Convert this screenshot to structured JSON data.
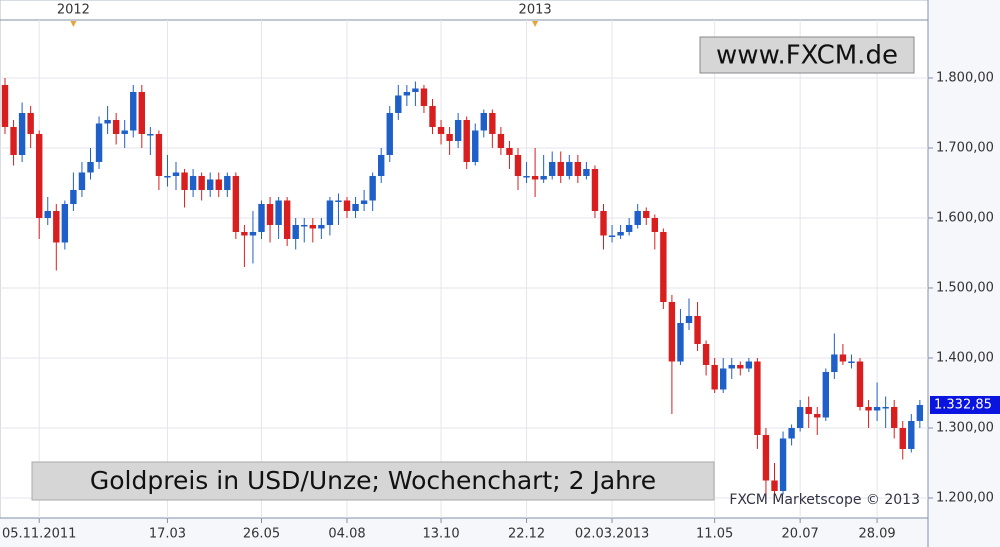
{
  "chart_data": {
    "type": "candlestick",
    "title": "Goldpreis in USD/Unze; Wochenchart; 2 Jahre",
    "watermark": "www.FXCM.de",
    "credit": "FXCM Marketscope © 2013",
    "up_color": "#1f5fc8",
    "down_color": "#d81e1e",
    "grid": true,
    "ylim": [
      1171.4,
      1911.4
    ],
    "yticks": [
      {
        "value": 1200,
        "label": "1.200,00"
      },
      {
        "value": 1300,
        "label": "1.300,00"
      },
      {
        "value": 1400,
        "label": "1.400,00"
      },
      {
        "value": 1500,
        "label": "1.500,00"
      },
      {
        "value": 1600,
        "label": "1.600,00"
      },
      {
        "value": 1700,
        "label": "1.700,00"
      },
      {
        "value": 1800,
        "label": "1.800,00"
      }
    ],
    "last_price": {
      "value": 1332.85,
      "label": "1.332,85"
    },
    "categories": [
      null,
      null,
      null,
      null,
      "05.11.2011",
      null,
      null,
      null,
      null,
      null,
      null,
      null,
      null,
      null,
      null,
      null,
      null,
      null,
      null,
      "17.03",
      null,
      null,
      null,
      null,
      null,
      null,
      null,
      null,
      null,
      null,
      "26.05",
      null,
      null,
      null,
      null,
      null,
      null,
      null,
      null,
      null,
      "04.08",
      null,
      null,
      null,
      null,
      null,
      null,
      null,
      null,
      null,
      null,
      "13.10",
      null,
      null,
      null,
      null,
      null,
      null,
      null,
      null,
      null,
      "22.12",
      null,
      null,
      null,
      null,
      null,
      null,
      null,
      null,
      null,
      "02.03.2013",
      null,
      null,
      null,
      null,
      null,
      null,
      null,
      null,
      null,
      null,
      null,
      "11.05",
      null,
      null,
      null,
      null,
      null,
      null,
      null,
      null,
      null,
      "20.07",
      null,
      null,
      null,
      null,
      null,
      null,
      null,
      null,
      "28.09",
      null,
      null,
      null,
      null,
      null
    ],
    "top_categories": [
      null,
      null,
      null,
      null,
      null,
      null,
      null,
      null,
      "2012",
      null,
      null,
      null,
      null,
      null,
      null,
      null,
      null,
      null,
      null,
      null,
      null,
      null,
      null,
      null,
      null,
      null,
      null,
      null,
      null,
      null,
      null,
      null,
      null,
      null,
      null,
      null,
      null,
      null,
      null,
      null,
      null,
      null,
      null,
      null,
      null,
      null,
      null,
      null,
      null,
      null,
      null,
      null,
      null,
      null,
      null,
      null,
      null,
      null,
      null,
      null,
      null,
      null,
      "2013",
      null,
      null,
      null,
      null,
      null,
      null,
      null,
      null,
      null,
      null,
      null,
      null,
      null,
      null,
      null,
      null,
      null,
      null,
      null,
      null,
      null,
      null,
      null,
      null,
      null,
      null,
      null,
      null,
      null,
      null,
      null,
      null,
      null,
      null,
      null,
      null,
      null,
      null,
      null,
      null,
      null,
      null,
      null,
      null,
      null
    ],
    "open": [
      1790,
      1730,
      1690,
      1750,
      1720,
      1600,
      1610,
      1565,
      1620,
      1640,
      1665,
      1680,
      1735,
      1740,
      1720,
      1725,
      1780,
      1720,
      1720,
      1660,
      1660,
      1665,
      1640,
      1660,
      1640,
      1655,
      1640,
      1660,
      1580,
      1575,
      1580,
      1620,
      1590,
      1625,
      1570,
      1590,
      1590,
      1585,
      1590,
      1625,
      1625,
      1610,
      1620,
      1625,
      1660,
      1690,
      1750,
      1775,
      1780,
      1785,
      1760,
      1730,
      1720,
      1710,
      1740,
      1680,
      1725,
      1750,
      1720,
      1700,
      1690,
      1660,
      1660,
      1655,
      1660,
      1680,
      1660,
      1680,
      1660,
      1670,
      1610,
      1575,
      1575,
      1580,
      1590,
      1610,
      1600,
      1580,
      1480,
      1395,
      1450,
      1460,
      1420,
      1390,
      1355,
      1385,
      1390,
      1385,
      1395,
      1290,
      1225,
      1210,
      1285,
      1300,
      1330,
      1320,
      1315,
      1380,
      1405,
      1395,
      1395,
      1330,
      1325,
      1330,
      1330,
      1300,
      1270,
      1310
    ],
    "high": [
      1800,
      1740,
      1765,
      1760,
      1725,
      1630,
      1620,
      1625,
      1665,
      1680,
      1700,
      1745,
      1760,
      1750,
      1740,
      1790,
      1790,
      1730,
      1725,
      1690,
      1680,
      1670,
      1670,
      1665,
      1665,
      1665,
      1665,
      1665,
      1590,
      1610,
      1625,
      1630,
      1630,
      1630,
      1600,
      1600,
      1600,
      1600,
      1630,
      1635,
      1630,
      1630,
      1640,
      1665,
      1700,
      1760,
      1790,
      1790,
      1795,
      1790,
      1770,
      1740,
      1730,
      1750,
      1745,
      1735,
      1755,
      1755,
      1730,
      1710,
      1700,
      1680,
      1700,
      1690,
      1695,
      1695,
      1690,
      1690,
      1680,
      1675,
      1620,
      1590,
      1590,
      1600,
      1620,
      1615,
      1605,
      1585,
      1490,
      1470,
      1485,
      1480,
      1425,
      1400,
      1400,
      1400,
      1395,
      1400,
      1400,
      1300,
      1250,
      1295,
      1305,
      1340,
      1345,
      1330,
      1385,
      1435,
      1420,
      1405,
      1400,
      1340,
      1365,
      1345,
      1340,
      1310,
      1320,
      1340
    ],
    "low": [
      1720,
      1675,
      1680,
      1700,
      1570,
      1590,
      1525,
      1555,
      1610,
      1630,
      1655,
      1670,
      1720,
      1705,
      1700,
      1715,
      1700,
      1690,
      1640,
      1645,
      1640,
      1615,
      1630,
      1625,
      1630,
      1630,
      1630,
      1570,
      1530,
      1535,
      1570,
      1565,
      1570,
      1560,
      1555,
      1565,
      1565,
      1570,
      1575,
      1590,
      1600,
      1600,
      1610,
      1610,
      1650,
      1680,
      1740,
      1760,
      1760,
      1750,
      1720,
      1705,
      1690,
      1700,
      1670,
      1675,
      1715,
      1700,
      1690,
      1670,
      1640,
      1650,
      1630,
      1650,
      1655,
      1650,
      1655,
      1650,
      1655,
      1600,
      1555,
      1565,
      1570,
      1575,
      1585,
      1590,
      1555,
      1470,
      1320,
      1390,
      1440,
      1410,
      1375,
      1350,
      1350,
      1370,
      1375,
      1380,
      1270,
      1200,
      1195,
      1205,
      1275,
      1295,
      1300,
      1290,
      1310,
      1370,
      1390,
      1385,
      1325,
      1300,
      1310,
      1300,
      1285,
      1255,
      1265,
      1300
    ],
    "close": [
      1730,
      1690,
      1750,
      1720,
      1600,
      1610,
      1565,
      1620,
      1640,
      1665,
      1680,
      1735,
      1740,
      1720,
      1725,
      1780,
      1720,
      1720,
      1660,
      1660,
      1665,
      1640,
      1660,
      1640,
      1655,
      1640,
      1660,
      1580,
      1575,
      1580,
      1620,
      1590,
      1625,
      1570,
      1590,
      1590,
      1585,
      1590,
      1625,
      1625,
      1610,
      1620,
      1625,
      1660,
      1690,
      1750,
      1775,
      1780,
      1785,
      1760,
      1730,
      1720,
      1710,
      1740,
      1680,
      1725,
      1750,
      1720,
      1700,
      1690,
      1660,
      1660,
      1655,
      1660,
      1680,
      1660,
      1680,
      1660,
      1670,
      1610,
      1575,
      1575,
      1580,
      1590,
      1610,
      1600,
      1580,
      1480,
      1395,
      1450,
      1460,
      1420,
      1390,
      1355,
      1385,
      1390,
      1385,
      1395,
      1290,
      1225,
      1210,
      1285,
      1300,
      1330,
      1320,
      1315,
      1380,
      1405,
      1395,
      1395,
      1330,
      1325,
      1330,
      1330,
      1300,
      1270,
      1310,
      1332.85
    ]
  }
}
